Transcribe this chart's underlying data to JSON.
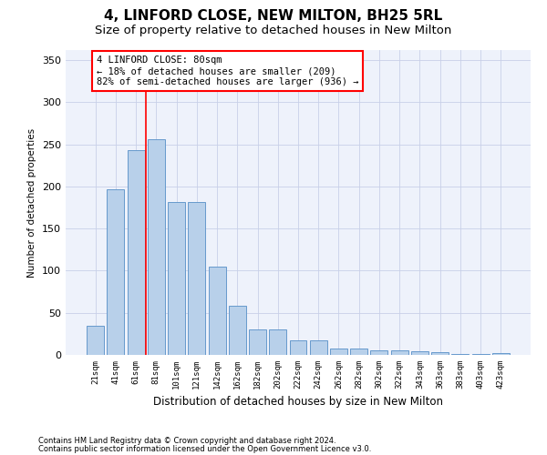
{
  "title1": "4, LINFORD CLOSE, NEW MILTON, BH25 5RL",
  "title2": "Size of property relative to detached houses in New Milton",
  "xlabel": "Distribution of detached houses by size in New Milton",
  "ylabel": "Number of detached properties",
  "categories": [
    "21sqm",
    "41sqm",
    "61sqm",
    "81sqm",
    "101sqm",
    "121sqm",
    "142sqm",
    "162sqm",
    "182sqm",
    "202sqm",
    "222sqm",
    "242sqm",
    "262sqm",
    "282sqm",
    "302sqm",
    "322sqm",
    "343sqm",
    "363sqm",
    "383sqm",
    "403sqm",
    "423sqm"
  ],
  "values": [
    35,
    197,
    243,
    256,
    182,
    182,
    105,
    58,
    30,
    30,
    17,
    17,
    8,
    8,
    5,
    5,
    4,
    3,
    1,
    1,
    2
  ],
  "bar_color": "#b8d0ea",
  "bar_edge_color": "#6699cc",
  "vline_x_idx": 2.5,
  "annotation_text": "4 LINFORD CLOSE: 80sqm\n← 18% of detached houses are smaller (209)\n82% of semi-detached houses are larger (936) →",
  "annotation_box_color": "white",
  "annotation_box_edge_color": "red",
  "ylim": [
    0,
    362
  ],
  "yticks": [
    0,
    50,
    100,
    150,
    200,
    250,
    300,
    350
  ],
  "footnote1": "Contains HM Land Registry data © Crown copyright and database right 2024.",
  "footnote2": "Contains public sector information licensed under the Open Government Licence v3.0.",
  "bg_color": "#eef2fb",
  "grid_color": "#c8d0e8",
  "title1_fontsize": 11,
  "title2_fontsize": 9.5
}
